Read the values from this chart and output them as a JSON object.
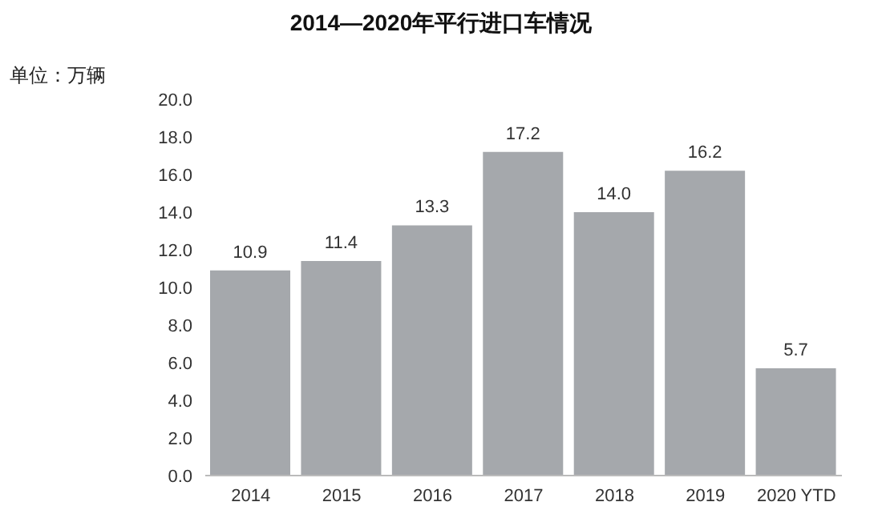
{
  "chart_data": {
    "type": "bar",
    "title": "2014—2020年平行进口车情况",
    "ylabel": "单位：万辆",
    "categories": [
      "2014",
      "2015",
      "2016",
      "2017",
      "2018",
      "2019",
      "2020 YTD"
    ],
    "values": [
      10.9,
      11.4,
      13.3,
      17.2,
      14.0,
      16.2,
      5.7
    ],
    "value_labels": [
      "10.9",
      "11.4",
      "13.3",
      "17.2",
      "14.0",
      "16.2",
      "5.7"
    ],
    "color": "#a5a8ac",
    "ylim": [
      0,
      20
    ],
    "yticks": [
      {
        "value": 0,
        "label": "0.0"
      },
      {
        "value": 2,
        "label": "2.0"
      },
      {
        "value": 4,
        "label": "4.0"
      },
      {
        "value": 6,
        "label": "6.0"
      },
      {
        "value": 8,
        "label": "8.0"
      },
      {
        "value": 10,
        "label": "10.0"
      },
      {
        "value": 12,
        "label": "12.0"
      },
      {
        "value": 14,
        "label": "14.0"
      },
      {
        "value": 16,
        "label": "16.0"
      },
      {
        "value": 18,
        "label": "18.0"
      },
      {
        "value": 20,
        "label": "20.0"
      }
    ],
    "grid": false,
    "legend": false
  }
}
